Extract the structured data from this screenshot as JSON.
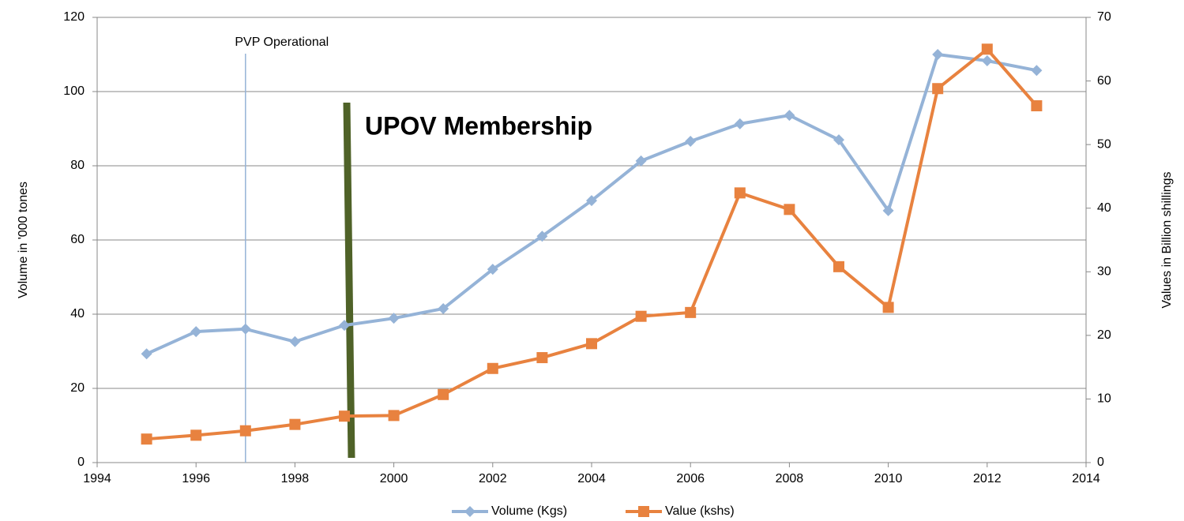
{
  "chart_data": {
    "type": "line",
    "y_label": "Volume in '000 tones",
    "y2_label": "Values in Billion shillings",
    "x": [
      1995,
      1996,
      1997,
      1998,
      1999,
      2000,
      2001,
      2002,
      2003,
      2004,
      2005,
      2006,
      2007,
      2008,
      2009,
      2010,
      2011,
      2012,
      2013
    ],
    "series": [
      {
        "name": "Volume (Kgs)",
        "color": "#95b3d7",
        "marker": "diamond",
        "values": [
          29.3,
          35.3,
          36,
          32.6,
          37,
          38.9,
          41.5,
          52.1,
          61,
          70.6,
          81.3,
          86.6,
          91.3,
          93.6,
          87,
          67.9,
          110,
          108.3,
          105.7
        ]
      },
      {
        "name": "Value (kshs)",
        "color": "#e8823f",
        "marker": "square",
        "axis": "y2",
        "values": [
          3.7,
          4.3,
          5.0,
          6.0,
          7.3,
          7.4,
          10.7,
          14.8,
          16.5,
          18.7,
          23,
          23.6,
          42.4,
          39.8,
          30.8,
          24.4,
          58.8,
          65,
          56.1
        ]
      }
    ],
    "xlim": [
      1994,
      2014
    ],
    "xticks": [
      1994,
      1996,
      1998,
      2000,
      2002,
      2004,
      2006,
      2008,
      2010,
      2012,
      2014
    ],
    "ylim": [
      0,
      120
    ],
    "yticks": [
      0,
      20,
      40,
      60,
      80,
      100,
      120
    ],
    "y2lim": [
      0,
      70
    ],
    "y2ticks": [
      0,
      10,
      20,
      30,
      40,
      50,
      60,
      70
    ],
    "grid": true,
    "legend": "bottom",
    "annotations": [
      {
        "text": "PVP Operational",
        "x": 1997,
        "color": "#95b3d7"
      },
      {
        "text": "UPOV Membership",
        "x": 1999,
        "color": "#4f6228"
      }
    ]
  }
}
